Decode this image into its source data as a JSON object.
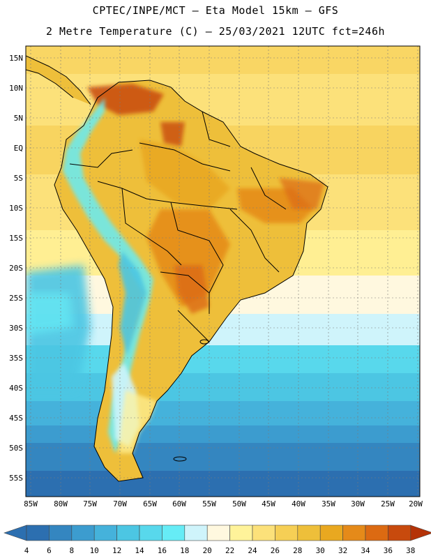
{
  "title_line1": "CPTEC/INPE/MCT –  Eta Model 15km – GFS",
  "title_line2": "2 Metre Temperature (C) – 25/03/2021 12UTC fct=246h",
  "lat_labels": [
    "15N",
    "10N",
    "5N",
    "EQ",
    "5S",
    "10S",
    "15S",
    "20S",
    "25S",
    "30S",
    "35S",
    "40S",
    "45S",
    "50S",
    "55S"
  ],
  "lon_labels": [
    "85W",
    "80W",
    "75W",
    "70W",
    "65W",
    "60W",
    "55W",
    "50W",
    "45W",
    "40W",
    "35W",
    "30W",
    "25W",
    "20W"
  ],
  "colorbar": {
    "labels": [
      "4",
      "6",
      "8",
      "10",
      "12",
      "14",
      "16",
      "18",
      "20",
      "22",
      "24",
      "26",
      "28",
      "30",
      "32",
      "34",
      "36",
      "38"
    ],
    "colors": [
      "#2c6fb0",
      "#3486c0",
      "#3c9ccf",
      "#45b2db",
      "#4cc6e3",
      "#58d8ec",
      "#66ecf6",
      "#cff4fb",
      "#fff8df",
      "#fff39a",
      "#fce17a",
      "#f6cf55",
      "#eebf3a",
      "#e9a820",
      "#e58a19",
      "#dc6a12",
      "#c84a0d",
      "#b43207"
    ]
  },
  "colors": {
    "deep_ocean": "#2c6fb0",
    "cool_ocean": "#4cc6e3",
    "mild_ocean": "#cff4fb",
    "warm_ocean": "#fce17a",
    "land_warm": "#eebf3a",
    "land_hot": "#c84a0d",
    "andes_cold": "#66ecf6"
  }
}
